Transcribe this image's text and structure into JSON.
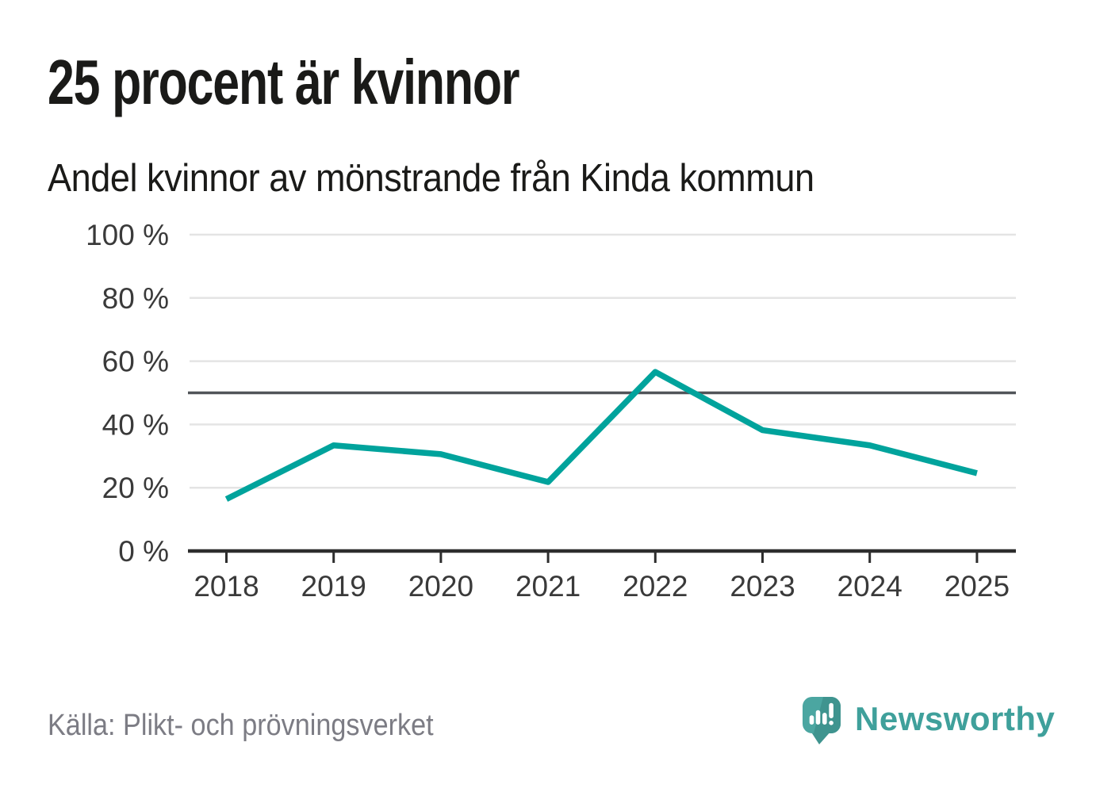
{
  "header": {
    "title": "25 procent är kvinnor",
    "subtitle": "Andel kvinnor av mönstrande från Kinda kommun"
  },
  "footer": {
    "source": "Källa: Plikt- och prövningsverket",
    "brand": "Newsworthy"
  },
  "colors": {
    "line": "#00a39c",
    "gridline": "#e4e4e4",
    "reference_line": "#515459",
    "axis": "#2d2d2d",
    "tick_text": "#3a3a3a",
    "title_text": "#1a1a18",
    "source_text": "#7c7c84",
    "logo_main": "#4ba6a1",
    "logo_shade": "#3f948f",
    "logo_glyph": "#ffffff",
    "brand_text": "#3fa09b",
    "background": "#ffffff"
  },
  "chart_data": {
    "type": "line",
    "title": "25 procent är kvinnor",
    "subtitle": "Andel kvinnor av mönstrande från Kinda kommun",
    "x_labels": [
      "2018",
      "2019",
      "2020",
      "2021",
      "2022",
      "2023",
      "2024",
      "2025"
    ],
    "series": [
      {
        "name": "Andel kvinnor",
        "values": [
          16.4,
          33.4,
          30.6,
          21.8,
          56.6,
          38.2,
          33.4,
          24.6
        ]
      }
    ],
    "y_ticks": [
      {
        "value": 0,
        "label": "0 %"
      },
      {
        "value": 20,
        "label": "20 %"
      },
      {
        "value": 40,
        "label": "40 %"
      },
      {
        "value": 60,
        "label": "60 %"
      },
      {
        "value": 80,
        "label": "80 %"
      },
      {
        "value": 100,
        "label": "100 %"
      }
    ],
    "ylim": [
      0,
      100
    ],
    "reference_line": 50,
    "grid": true,
    "legend": "none",
    "source": "Källa: Plikt- och prövningsverket"
  }
}
